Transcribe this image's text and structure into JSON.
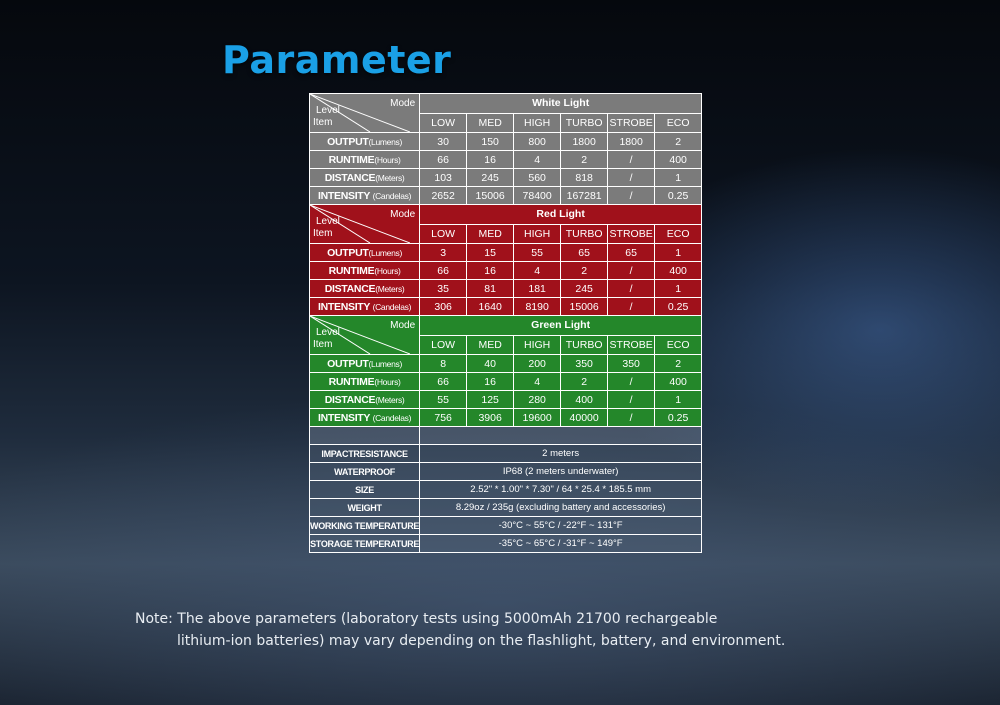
{
  "title": "Parameter",
  "header": {
    "level": "Level",
    "mode": "Mode",
    "item": "Item"
  },
  "modes": [
    "LOW",
    "MED",
    "HIGH",
    "TURBO",
    "STROBE",
    "ECO"
  ],
  "sections": [
    {
      "name": "White Light",
      "color": "#7b7b7b",
      "rows": [
        {
          "label": "OUTPUT",
          "unit": "(Lumens)",
          "values": [
            "30",
            "150",
            "800",
            "1800",
            "1800",
            "2"
          ]
        },
        {
          "label": "RUNTIME",
          "unit": "(Hours)",
          "values": [
            "66",
            "16",
            "4",
            "2",
            "/",
            "400"
          ]
        },
        {
          "label": "DISTANCE",
          "unit": "(Meters)",
          "values": [
            "103",
            "245",
            "560",
            "818",
            "/",
            "1"
          ]
        },
        {
          "label": "INTENSITY ",
          "unit": "(Candelas)",
          "values": [
            "2652",
            "15006",
            "78400",
            "167281",
            "/",
            "0.25"
          ]
        }
      ]
    },
    {
      "name": "Red Light",
      "color": "#a0111b",
      "rows": [
        {
          "label": "OUTPUT",
          "unit": "(Lumens)",
          "values": [
            "3",
            "15",
            "55",
            "65",
            "65",
            "1"
          ]
        },
        {
          "label": "RUNTIME",
          "unit": "(Hours)",
          "values": [
            "66",
            "16",
            "4",
            "2",
            "/",
            "400"
          ]
        },
        {
          "label": "DISTANCE",
          "unit": "(Meters)",
          "values": [
            "35",
            "81",
            "181",
            "245",
            "/",
            "1"
          ]
        },
        {
          "label": "INTENSITY ",
          "unit": "(Candelas)",
          "values": [
            "306",
            "1640",
            "8190",
            "15006",
            "/",
            "0.25"
          ]
        }
      ]
    },
    {
      "name": "Green Light",
      "color": "#24872a",
      "rows": [
        {
          "label": "OUTPUT",
          "unit": "(Lumens)",
          "values": [
            "8",
            "40",
            "200",
            "350",
            "350",
            "2"
          ]
        },
        {
          "label": "RUNTIME",
          "unit": "(Hours)",
          "values": [
            "66",
            "16",
            "4",
            "2",
            "/",
            "400"
          ]
        },
        {
          "label": "DISTANCE",
          "unit": "(Meters)",
          "values": [
            "55",
            "125",
            "280",
            "400",
            "/",
            "1"
          ]
        },
        {
          "label": "INTENSITY ",
          "unit": "(Candelas)",
          "values": [
            "756",
            "3906",
            "19600",
            "40000",
            "/",
            "0.25"
          ]
        }
      ]
    }
  ],
  "general": [
    {
      "label": "IMPACTRESISTANCE",
      "value": "2 meters"
    },
    {
      "label": "WATERPROOF",
      "value": "IP68 (2 meters underwater)"
    },
    {
      "label": "SIZE",
      "value": "2.52\" * 1.00\" * 7.30\" / 64 * 25.4 * 185.5 mm"
    },
    {
      "label": "WEIGHT",
      "value": "8.29oz / 235g (excluding battery and accessories)"
    },
    {
      "label": "WORKING TEMPERATURE",
      "value": "-30°C ~ 55°C / -22°F ~ 131°F"
    },
    {
      "label": "STORAGE TEMPERATURE",
      "value": "-35°C ~ 65°C / -31°F ~ 149°F"
    }
  ],
  "note": {
    "line1": "Note: The above parameters (laboratory tests using 5000mAh 21700 rechargeable",
    "line2": "lithium-ion batteries) may vary depending on the flashlight, battery, and environment."
  }
}
